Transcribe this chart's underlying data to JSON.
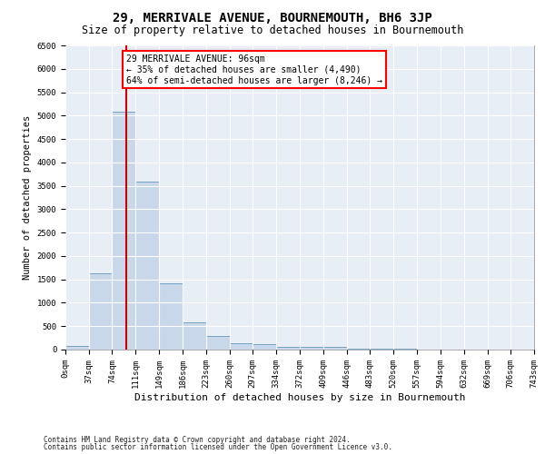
{
  "title": "29, MERRIVALE AVENUE, BOURNEMOUTH, BH6 3JP",
  "subtitle": "Size of property relative to detached houses in Bournemouth",
  "xlabel": "Distribution of detached houses by size in Bournemouth",
  "ylabel": "Number of detached properties",
  "footnote1": "Contains HM Land Registry data © Crown copyright and database right 2024.",
  "footnote2": "Contains public sector information licensed under the Open Government Licence v3.0.",
  "annotation_line1": "29 MERRIVALE AVENUE: 96sqm",
  "annotation_line2": "← 35% of detached houses are smaller (4,490)",
  "annotation_line3": "64% of semi-detached houses are larger (8,246) →",
  "bar_color": "#c8d8ea",
  "bar_edge_color": "#6699bb",
  "vline_color": "#cc0000",
  "vline_x": 96,
  "bin_edges": [
    0,
    37,
    74,
    111,
    149,
    186,
    223,
    260,
    297,
    334,
    372,
    409,
    446,
    483,
    520,
    557,
    594,
    632,
    669,
    706,
    743
  ],
  "bar_heights": [
    75,
    1630,
    5080,
    3590,
    1410,
    590,
    290,
    140,
    110,
    65,
    50,
    65,
    20,
    10,
    10,
    5,
    5,
    5,
    5,
    5
  ],
  "ylim": [
    0,
    6500
  ],
  "yticks": [
    0,
    500,
    1000,
    1500,
    2000,
    2500,
    3000,
    3500,
    4000,
    4500,
    5000,
    5500,
    6000,
    6500
  ],
  "fig_bg_color": "#ffffff",
  "plot_bg_color": "#e8eef6",
  "grid_color": "#ffffff",
  "title_fontsize": 10,
  "subtitle_fontsize": 8.5,
  "ylabel_fontsize": 7.5,
  "xlabel_fontsize": 8,
  "tick_fontsize": 6.5,
  "footnote_fontsize": 5.5,
  "annot_fontsize": 7
}
